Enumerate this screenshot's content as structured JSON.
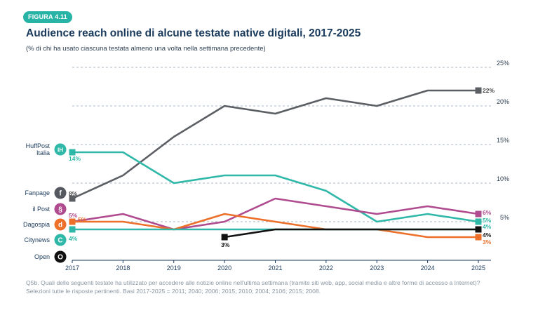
{
  "figure_badge": "FIGURA 4.11",
  "title": "Audience reach online di alcune testate native digitali, 2017-2025",
  "subtitle": "(% di chi ha usato ciascuna testata almeno una volta nella settimana precedente)",
  "note_line1": "Q5b. Quali delle seguenti testate ha utilizzato per accedere alle notizie online nell'ultima settimana (tramite siti web, app, social media e altre forme di accesso a Internet)?",
  "note_line2": "Selezioni tutte le risposte pertinenti. Basi 2017-2025 = 2011; 2040; 2006; 2015; 2010; 2004; 2106; 2015; 2008.",
  "brands": [
    {
      "key": "huffpost",
      "label_lines": [
        "HuffPost",
        "Italia"
      ],
      "icon": "huffpost-logo-icon",
      "icon_text": "IH",
      "color": "#2fb8a8"
    },
    {
      "key": "fanpage",
      "label_lines": [
        "Fanpage"
      ],
      "icon": "fanpage-logo-icon",
      "icon_text": "f",
      "color": "#55585e"
    },
    {
      "key": "ilpost",
      "label_lines": [
        "il Post"
      ],
      "icon": "ilpost-logo-icon",
      "icon_text": "§",
      "color": "#b04b8f"
    },
    {
      "key": "dagospia",
      "label_lines": [
        "Dagospia"
      ],
      "icon": "dagospia-logo-icon",
      "icon_text": "d",
      "color": "#ec6f2a"
    },
    {
      "key": "citynews",
      "label_lines": [
        "Citynews"
      ],
      "icon": "citynews-logo-icon",
      "icon_text": "C",
      "color": "#2fb8a8"
    },
    {
      "key": "open",
      "label_lines": [
        "Open"
      ],
      "icon": "open-logo-icon",
      "icon_text": "O",
      "color": "#111111"
    }
  ],
  "chart_data": {
    "type": "line",
    "title": "Audience reach online di alcune testate native digitali, 2017-2025",
    "x": [
      "2017",
      "2018",
      "2019",
      "2020",
      "2021",
      "2022",
      "2023",
      "2024",
      "2025"
    ],
    "ylim": [
      0,
      25
    ],
    "yticks": [
      5,
      10,
      15,
      20,
      25
    ],
    "ytick_labels": [
      "5%",
      "10%",
      "15%",
      "20%",
      "25%"
    ],
    "grid": "horizontal dashed",
    "series": [
      {
        "name": "Fanpage",
        "color": "#5b5e63",
        "values": [
          8,
          11,
          16,
          20,
          19,
          21,
          20,
          22,
          22
        ],
        "start_label": "8%",
        "end_label": "22%"
      },
      {
        "name": "HuffPost Italia",
        "color": "#2fb8a8",
        "values": [
          14,
          14,
          10,
          11,
          11,
          9,
          5,
          6,
          5
        ],
        "start_label": "14%",
        "end_label": "5%"
      },
      {
        "name": "il Post",
        "color": "#b04b8f",
        "values": [
          5,
          6,
          4,
          5,
          8,
          7,
          6,
          7,
          6
        ],
        "start_label": "5%",
        "end_label": "6%"
      },
      {
        "name": "Dagospia",
        "color": "#ec6f2a",
        "values": [
          5,
          5,
          4,
          6,
          5,
          4,
          4,
          3,
          3
        ],
        "start_label": "5%",
        "end_label": "3%"
      },
      {
        "name": "Citynews",
        "color": "#2fb8a8",
        "values": [
          4,
          4,
          4,
          4,
          4,
          4,
          4,
          4,
          4
        ],
        "start_label": "4%",
        "end_label": "4%"
      },
      {
        "name": "Open",
        "color": "#111111",
        "values": [
          null,
          null,
          null,
          3,
          4,
          4,
          4,
          4,
          4
        ],
        "start_label": "3%",
        "end_label": "4%"
      }
    ]
  }
}
